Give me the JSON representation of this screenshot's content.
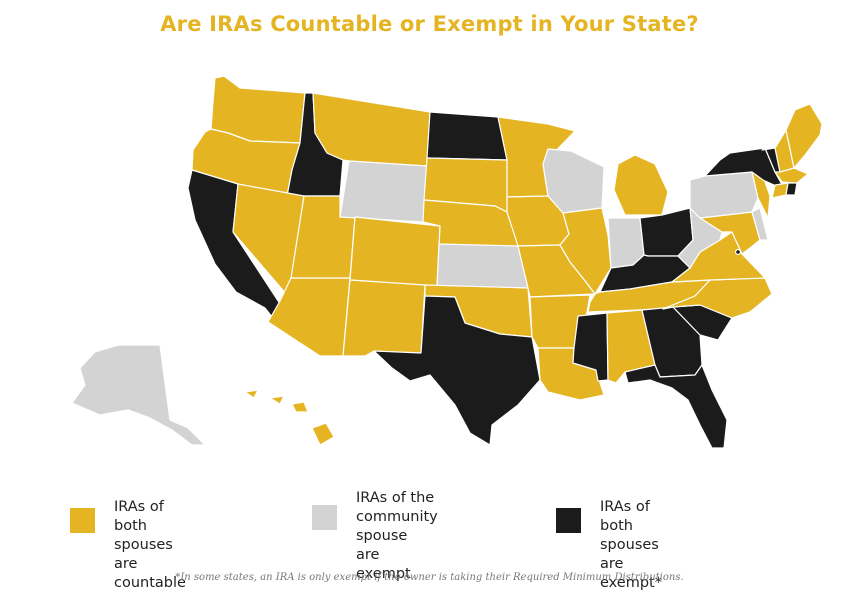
{
  "title": "Are IRAs Countable or Exempt in Your State?",
  "colors": {
    "countable": "#e5b422",
    "community_exempt": "#d3d3d3",
    "exempt": "#1b1b1b",
    "title": "#e5b422"
  },
  "map": {
    "states": [
      {
        "name": "Washington",
        "category": "countable"
      },
      {
        "name": "Oregon",
        "category": "countable"
      },
      {
        "name": "California",
        "category": "exempt"
      },
      {
        "name": "Idaho",
        "category": "exempt"
      },
      {
        "name": "Nevada",
        "category": "countable"
      },
      {
        "name": "Arizona",
        "category": "countable"
      },
      {
        "name": "Utah",
        "category": "countable"
      },
      {
        "name": "Montana",
        "category": "countable"
      },
      {
        "name": "Wyoming",
        "category": "community_exempt"
      },
      {
        "name": "Colorado",
        "category": "countable"
      },
      {
        "name": "New Mexico",
        "category": "countable"
      },
      {
        "name": "North Dakota",
        "category": "exempt"
      },
      {
        "name": "South Dakota",
        "category": "countable"
      },
      {
        "name": "Nebraska",
        "category": "countable"
      },
      {
        "name": "Kansas",
        "category": "community_exempt"
      },
      {
        "name": "Oklahoma",
        "category": "countable"
      },
      {
        "name": "Texas",
        "category": "exempt"
      },
      {
        "name": "Minnesota",
        "category": "countable"
      },
      {
        "name": "Iowa",
        "category": "countable"
      },
      {
        "name": "Missouri",
        "category": "countable"
      },
      {
        "name": "Arkansas",
        "category": "countable"
      },
      {
        "name": "Louisiana",
        "category": "countable"
      },
      {
        "name": "Wisconsin",
        "category": "community_exempt"
      },
      {
        "name": "Illinois",
        "category": "countable"
      },
      {
        "name": "Michigan",
        "category": "countable"
      },
      {
        "name": "Indiana",
        "category": "community_exempt"
      },
      {
        "name": "Ohio",
        "category": "exempt"
      },
      {
        "name": "Kentucky",
        "category": "exempt"
      },
      {
        "name": "Tennessee",
        "category": "countable"
      },
      {
        "name": "Mississippi",
        "category": "exempt"
      },
      {
        "name": "Alabama",
        "category": "countable"
      },
      {
        "name": "Georgia",
        "category": "exempt"
      },
      {
        "name": "Florida",
        "category": "exempt"
      },
      {
        "name": "South Carolina",
        "category": "exempt"
      },
      {
        "name": "North Carolina",
        "category": "countable"
      },
      {
        "name": "Virginia",
        "category": "countable"
      },
      {
        "name": "West Virginia",
        "category": "community_exempt"
      },
      {
        "name": "Maryland",
        "category": "countable"
      },
      {
        "name": "Delaware",
        "category": "community_exempt"
      },
      {
        "name": "Pennsylvania",
        "category": "community_exempt"
      },
      {
        "name": "New Jersey",
        "category": "countable"
      },
      {
        "name": "New York",
        "category": "exempt"
      },
      {
        "name": "Connecticut",
        "category": "countable"
      },
      {
        "name": "Rhode Island",
        "category": "exempt"
      },
      {
        "name": "Massachusetts",
        "category": "countable"
      },
      {
        "name": "Vermont",
        "category": "exempt"
      },
      {
        "name": "New Hampshire",
        "category": "countable"
      },
      {
        "name": "Maine",
        "category": "countable"
      },
      {
        "name": "Alaska",
        "category": "community_exempt"
      },
      {
        "name": "Hawaii",
        "category": "countable"
      }
    ]
  },
  "legend": {
    "items": [
      {
        "key": "countable",
        "label": "IRAs of both spouses\nare countable"
      },
      {
        "key": "community_exempt",
        "label": "IRAs of the\ncommunity spouse\nare exempt"
      },
      {
        "key": "exempt",
        "label": "IRAs of both spouses\nare exempt*"
      }
    ]
  },
  "footnote": "*In some states, an IRA is only exempt if the owner is taking their Required Minimum Distributions."
}
